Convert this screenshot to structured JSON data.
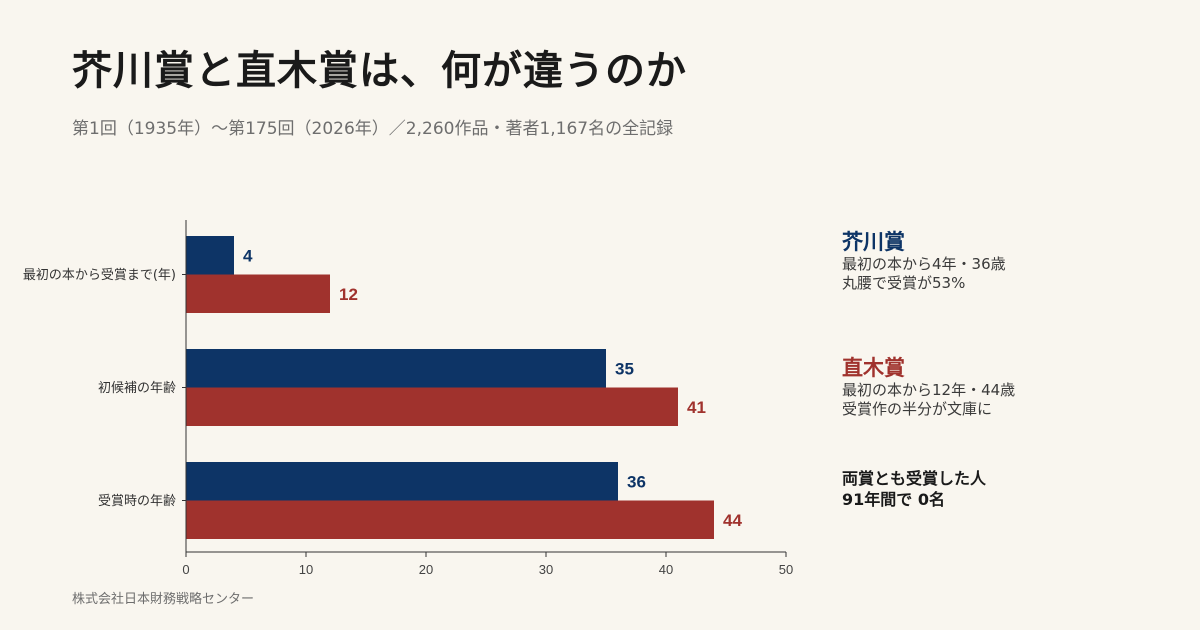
{
  "header": {
    "title": "芥川賞と直木賞は、何が違うのか",
    "subtitle": "第1回（1935年）〜第175回（2026年）／2,260作品・著者1,167名の全記録"
  },
  "legend": {
    "akutagawa": {
      "title": "芥川賞",
      "line1": "最初の本から4年・36歳",
      "line2": "丸腰で受賞が53%"
    },
    "naoki": {
      "title": "直木賞",
      "line1": "最初の本から12年・44歳",
      "line2": "受賞作の半分が文庫に"
    },
    "note": {
      "line1": "両賞とも受賞した人",
      "line2": "91年間で 0名"
    }
  },
  "footer": {
    "source": "株式会社日本財務戦略センター"
  },
  "colors": {
    "akutagawa": "#0d3466",
    "naoki": "#a0322d",
    "background": "#f9f6ef",
    "axis": "#333333"
  },
  "chart_data": {
    "type": "bar",
    "orientation": "horizontal",
    "categories": [
      "最初の本から受賞まで(年)",
      "初候補の年齢",
      "受賞時の年齢"
    ],
    "series": [
      {
        "name": "芥川賞",
        "values": [
          4,
          35,
          36
        ]
      },
      {
        "name": "直木賞",
        "values": [
          12,
          41,
          44
        ]
      }
    ],
    "xlim": [
      0,
      50
    ],
    "xticks": [
      "0",
      "10",
      "20",
      "30",
      "40",
      "50"
    ],
    "data_labels": true,
    "grid": false,
    "legend_position": "right"
  }
}
